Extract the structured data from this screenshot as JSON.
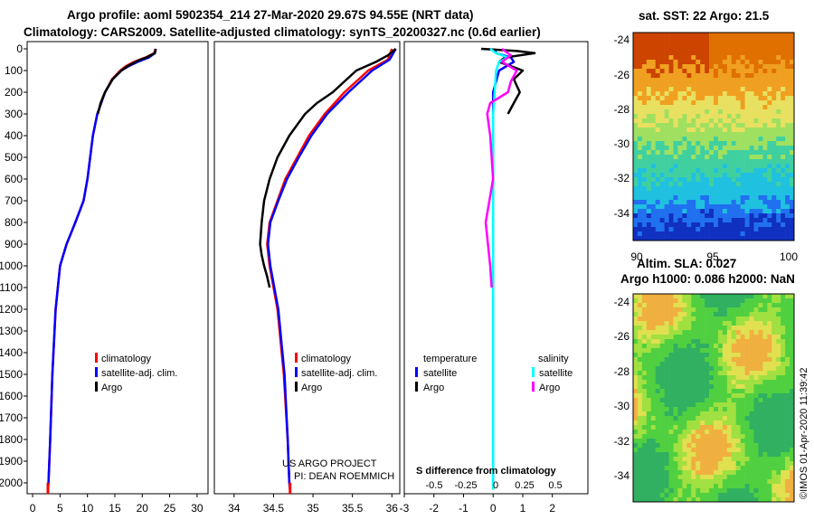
{
  "header": {
    "line1": "Argo profile: aoml 5902354_214 27-Mar-2020 29.67S 94.55E (NRT data)",
    "line2": "Climatology: CARS2009. Satellite-adjusted climatology: synTS_20200327.nc (0.6d earlier)"
  },
  "colors": {
    "climatology": "#ff0000",
    "satellite": "#0000ff",
    "argo": "#000000",
    "satellite_sal": "#00ffff",
    "argo_sal": "#ff00ff"
  },
  "depth_ticks": [
    "0",
    "100",
    "200",
    "300",
    "400",
    "500",
    "600",
    "700",
    "800",
    "900",
    "1000",
    "1100",
    "1200",
    "1300",
    "1400",
    "1500",
    "1600",
    "1700",
    "1800",
    "1900",
    "2000"
  ],
  "chart_data": [
    {
      "type": "line",
      "name": "temperature",
      "xlabel": "",
      "ylabel": "",
      "xlim": [
        -1,
        32
      ],
      "ylim": [
        2050,
        0
      ],
      "xticks": [
        "0",
        "5",
        "10",
        "15",
        "20",
        "25",
        "30"
      ],
      "legend": [
        "climatology",
        "satellite-adj. clim.",
        "Argo"
      ],
      "series": [
        {
          "name": "climatology",
          "depth": [
            0,
            20,
            40,
            60,
            80,
            100,
            140,
            200,
            300,
            400,
            500,
            600,
            700,
            800,
            900,
            1000,
            1200,
            1500,
            1800,
            2000,
            2030
          ],
          "values": [
            22.4,
            22.2,
            20.6,
            18.5,
            17,
            16,
            14.5,
            13.2,
            11.8,
            11,
            10.5,
            10,
            9.3,
            7.8,
            6.2,
            5,
            4.2,
            3.6,
            3.2,
            2.9,
            2.8
          ]
        },
        {
          "name": "satellite-adj. clim.",
          "depth": [
            0,
            20,
            40,
            60,
            80,
            100,
            140,
            200,
            300,
            400,
            500,
            600,
            700,
            800,
            900,
            1000,
            1200,
            1500,
            1800,
            2000,
            2030
          ],
          "values": [
            22.5,
            22.3,
            21.2,
            19.2,
            17.5,
            16.2,
            14.6,
            13.2,
            11.8,
            11,
            10.5,
            10,
            9.3,
            7.8,
            6.2,
            5,
            4.2,
            3.6,
            3.2,
            2.9,
            2.8
          ]
        },
        {
          "name": "Argo",
          "depth": [
            0,
            10,
            20,
            30,
            40,
            50,
            60,
            80,
            100,
            140,
            200,
            250,
            300
          ],
          "values": [
            22.4,
            22.4,
            22.3,
            21.5,
            20.8,
            19.6,
            18.8,
            17.3,
            16.2,
            14.6,
            13.2,
            12.4,
            11.9
          ]
        }
      ]
    },
    {
      "type": "line",
      "name": "salinity",
      "xlabel": "",
      "ylabel": "",
      "xlim": [
        33.75,
        36.1
      ],
      "ylim": [
        2050,
        0
      ],
      "xticks": [
        "34",
        "34.5",
        "35",
        "35.5",
        "36"
      ],
      "legend": [
        "climatology",
        "satellite-adj. clim.",
        "Argo"
      ],
      "series": [
        {
          "name": "climatology",
          "depth": [
            0,
            50,
            100,
            200,
            300,
            400,
            500,
            600,
            700,
            800,
            900,
            1000,
            1200,
            1500,
            1800,
            2000,
            2030
          ],
          "values": [
            36.0,
            35.95,
            35.7,
            35.4,
            35.15,
            34.95,
            34.8,
            34.65,
            34.55,
            34.45,
            34.42,
            34.45,
            34.55,
            34.63,
            34.68,
            34.7,
            34.71
          ]
        },
        {
          "name": "satellite-adj. clim.",
          "depth": [
            0,
            50,
            100,
            200,
            300,
            400,
            500,
            600,
            700,
            800,
            900,
            1000,
            1200,
            1500,
            1800,
            2000,
            2030
          ],
          "values": [
            36.05,
            35.97,
            35.75,
            35.45,
            35.18,
            34.98,
            34.82,
            34.67,
            34.56,
            34.46,
            34.43,
            34.46,
            34.56,
            34.64,
            34.68,
            34.7,
            34.71
          ]
        },
        {
          "name": "Argo",
          "depth": [
            0,
            30,
            60,
            100,
            150,
            200,
            250,
            300,
            400,
            500,
            600,
            700,
            800,
            900,
            950,
            1000,
            1050,
            1100
          ],
          "values": [
            36.05,
            35.95,
            35.8,
            35.55,
            35.4,
            35.25,
            35.05,
            34.9,
            34.7,
            34.55,
            34.45,
            34.38,
            34.35,
            34.33,
            34.35,
            34.38,
            34.42,
            34.45
          ]
        }
      ]
    },
    {
      "type": "line",
      "name": "difference",
      "title": "S difference from climatology",
      "xlabel": "",
      "ylabel": "",
      "xlim": [
        -3,
        3.2
      ],
      "ylim": [
        2050,
        0
      ],
      "xticks": [
        "-3",
        "-2",
        "-1",
        "0",
        "1",
        "2"
      ],
      "xticks_sal": [
        "-0.5",
        "-0.25",
        "0",
        "0.25",
        "0.5"
      ],
      "legend": [
        "temperature",
        "satellite",
        "Argo",
        "salinity",
        "satellite",
        "Argo"
      ],
      "series": [
        {
          "name": "temperature satellite",
          "depth": [
            0,
            20,
            40,
            60,
            100,
            200,
            300,
            500,
            800,
            1000,
            1500,
            2030
          ],
          "values": [
            0.05,
            0.1,
            0.6,
            0.7,
            0.2,
            0,
            0,
            0,
            0,
            0,
            0,
            0
          ]
        },
        {
          "name": "temperature Argo",
          "depth": [
            0,
            10,
            20,
            40,
            60,
            80,
            100,
            140,
            200,
            250,
            300
          ],
          "values": [
            -0.4,
            0.8,
            1.4,
            0.4,
            0.2,
            0.6,
            1.0,
            0.7,
            0.9,
            0.7,
            0.5
          ]
        },
        {
          "name": "salinity satellite",
          "depth": [
            0,
            20,
            40,
            60,
            100,
            200,
            300,
            500,
            1000,
            1500,
            2030
          ],
          "values": [
            -0.1,
            0.1,
            0.5,
            0.2,
            0.1,
            0.05,
            0,
            0,
            0,
            0,
            0
          ]
        },
        {
          "name": "salinity Argo",
          "depth": [
            0,
            30,
            60,
            100,
            150,
            200,
            250,
            300,
            400,
            600,
            800,
            1000,
            1100
          ],
          "values": [
            0.3,
            0.6,
            0.3,
            0.8,
            0.6,
            0.5,
            -0.1,
            -0.2,
            -0.1,
            0,
            -0.25,
            -0.1,
            -0.05
          ]
        }
      ]
    }
  ],
  "legend_labels": {
    "climatology": "climatology",
    "satellite_adj": "satellite-adj. clim.",
    "argo": "Argo",
    "temperature": "temperature",
    "salinity": "salinity",
    "satellite": "satellite"
  },
  "credits": {
    "line1": "US ARGO PROJECT",
    "line2": "PI: DEAN ROEMMICH"
  },
  "maps": {
    "sst": {
      "title": "sat. SST: 22 Argo: 21.5",
      "yticks": [
        "-24",
        "-26",
        "-28",
        "-30",
        "-32",
        "-34"
      ],
      "xticks": [
        "90",
        "95",
        "100"
      ]
    },
    "sla": {
      "title1": "Altim. SLA: 0.027",
      "title2": "Argo h1000: 0.086 h2000: NaN",
      "yticks": [
        "-24",
        "-26",
        "-28",
        "-30",
        "-32",
        "-34"
      ]
    }
  },
  "watermark": "©IMOS 01-Apr-2020 11:39:42"
}
